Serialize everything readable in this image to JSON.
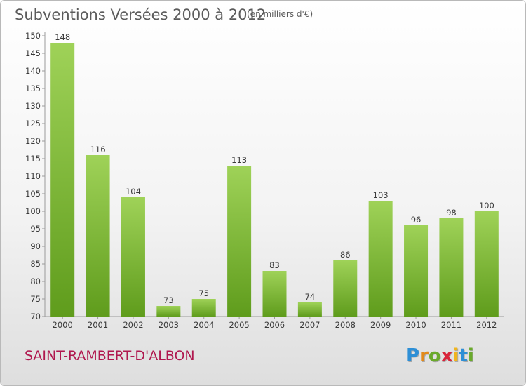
{
  "header": {
    "title": "Subventions Versées 2000 à 2012",
    "subtitle": "(en milliers d'€)"
  },
  "footer": {
    "commune": "SAINT-RAMBERT-D'ALBON",
    "logo_letters": [
      "P",
      "r",
      "o",
      "x",
      "i",
      "t",
      "i"
    ],
    "logo_colors": [
      "#2e8fd6",
      "#e38a1a",
      "#6aaa2b",
      "#d9253b",
      "#f0b51e",
      "#2e8fd6",
      "#6aaa2b"
    ]
  },
  "chart_data": {
    "type": "bar",
    "title": "Subventions Versées 2000 à 2012",
    "subtitle": "(en milliers d'€)",
    "categories": [
      "2000",
      "2001",
      "2002",
      "2003",
      "2004",
      "2005",
      "2006",
      "2007",
      "2008",
      "2009",
      "2010",
      "2011",
      "2012"
    ],
    "values": [
      148,
      116,
      104,
      73,
      75,
      113,
      83,
      74,
      86,
      103,
      96,
      98,
      100
    ],
    "ylim": [
      70,
      150
    ],
    "yticks": [
      70,
      75,
      80,
      85,
      90,
      95,
      100,
      105,
      110,
      115,
      120,
      125,
      130,
      135,
      140,
      145,
      150
    ],
    "grid": false,
    "colors": {
      "bar_top": "#9fd258",
      "bar_bottom": "#5f9c1c",
      "axis": "#9a9a9a"
    }
  }
}
